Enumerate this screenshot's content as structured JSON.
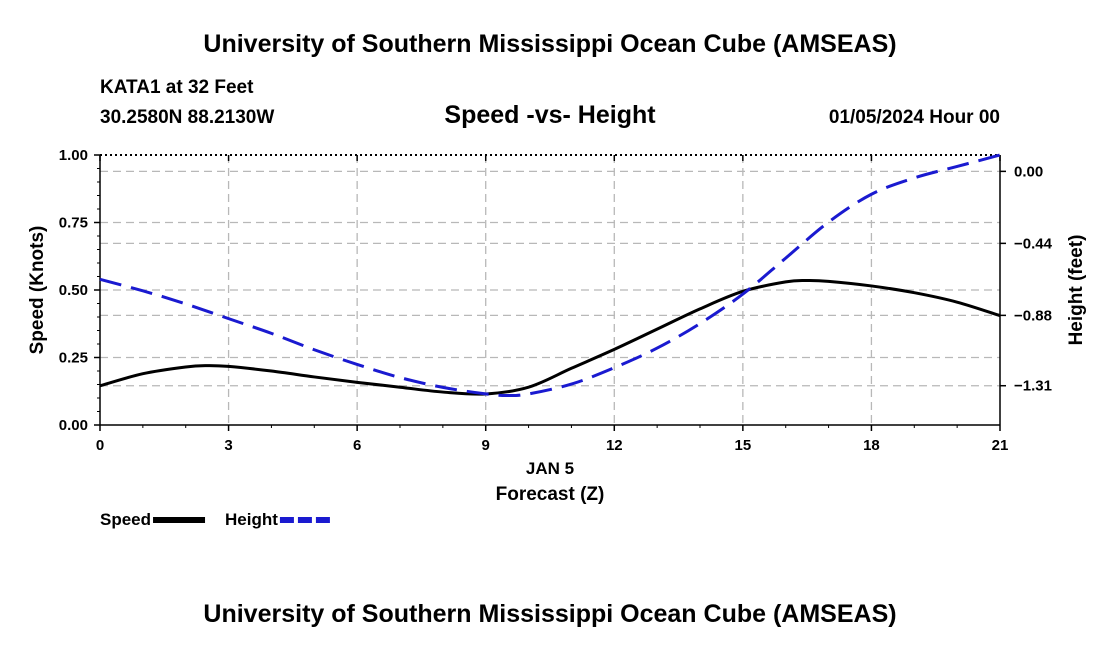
{
  "page": {
    "title_top": "University of Southern Mississippi Ocean Cube (AMSEAS)",
    "title_bottom": "University of Southern Mississippi Ocean Cube (AMSEAS)",
    "station": "KATA1 at 32 Feet",
    "coords": "30.2580N  88.2130W",
    "datetime": "01/05/2024 Hour 00"
  },
  "chart_data": {
    "type": "line",
    "title": "Speed -vs- Height",
    "xlabel": "Forecast (Z)",
    "xlabel_date": "JAN 5",
    "xlim": [
      0,
      21
    ],
    "xticks": [
      0,
      3,
      6,
      9,
      12,
      15,
      18,
      21
    ],
    "ylabel_left": "Speed (Knots)",
    "ylim_left": [
      0,
      1
    ],
    "yticks_left": [
      "0.00",
      "0.25",
      "0.50",
      "0.75",
      "1.00"
    ],
    "ylabel_right": "Height (feet)",
    "ylim_right": [
      -1.55,
      0.1
    ],
    "yticks_right": [
      {
        "value": 0.0,
        "label": "0.00"
      },
      {
        "value": -0.44,
        "label": "−0.44"
      },
      {
        "value": -0.88,
        "label": "−0.88"
      },
      {
        "value": -1.31,
        "label": "−1.31"
      }
    ],
    "grid": true,
    "legend_position": "bottom-left",
    "series": [
      {
        "name": "Speed",
        "axis": "left",
        "color": "#000000",
        "style": "solid",
        "x": [
          0,
          1,
          2,
          2.5,
          3,
          4,
          5,
          6,
          7,
          8,
          9,
          10,
          11,
          12,
          13,
          14,
          15,
          16,
          16.5,
          17,
          18,
          19,
          20,
          21
        ],
        "values": [
          0.145,
          0.19,
          0.215,
          0.22,
          0.217,
          0.2,
          0.178,
          0.158,
          0.14,
          0.122,
          0.115,
          0.14,
          0.21,
          0.28,
          0.355,
          0.43,
          0.495,
          0.53,
          0.535,
          0.532,
          0.515,
          0.49,
          0.455,
          0.405
        ]
      },
      {
        "name": "Height",
        "axis": "right",
        "color": "#1a1ad0",
        "style": "dashed",
        "x": [
          0,
          1,
          2,
          3,
          4,
          5,
          6,
          7,
          8,
          9,
          9.5,
          10,
          11,
          12,
          13,
          14,
          15,
          16,
          17,
          18,
          19,
          20,
          21
        ],
        "values": [
          -0.66,
          -0.73,
          -0.81,
          -0.9,
          -0.99,
          -1.09,
          -1.18,
          -1.26,
          -1.32,
          -1.36,
          -1.37,
          -1.36,
          -1.3,
          -1.2,
          -1.08,
          -0.93,
          -0.75,
          -0.53,
          -0.31,
          -0.14,
          -0.04,
          0.03,
          0.1
        ]
      }
    ]
  }
}
